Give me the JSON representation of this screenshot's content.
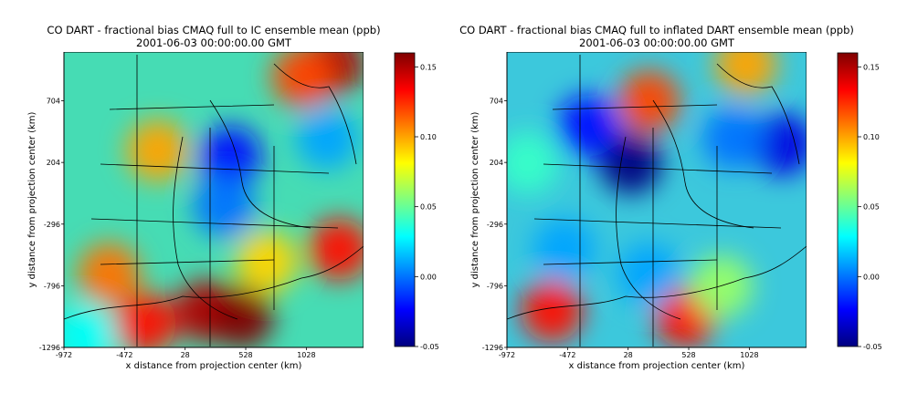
{
  "chart_data": [
    {
      "type": "heatmap",
      "title": "CO DART - fractional bias CMAQ full to IC ensemble mean (ppb)",
      "subtitle": "2001-06-03 00:00:00.00 GMT",
      "xlabel": "x distance from projection center (km)",
      "ylabel": "y distance from projection center (km)",
      "x_ticks": [
        -972,
        -472,
        28,
        528,
        1028
      ],
      "y_ticks": [
        704,
        204,
        -296,
        -796,
        -1296
      ],
      "xlim": [
        -972,
        1500
      ],
      "ylim": [
        -1296,
        1100
      ],
      "colorbar": {
        "ticks": [
          0.15,
          0.1,
          0.05,
          0.0,
          -0.05
        ],
        "range": [
          -0.05,
          0.16
        ]
      },
      "hotspots": [
        {
          "x": 200,
          "y": -1000,
          "value": 0.15
        },
        {
          "x": 500,
          "y": -1050,
          "value": 0.16
        },
        {
          "x": 1250,
          "y": 1000,
          "value": 0.15
        },
        {
          "x": 1300,
          "y": -500,
          "value": 0.13
        },
        {
          "x": -300,
          "y": -1100,
          "value": 0.13
        },
        {
          "x": -600,
          "y": -700,
          "value": 0.11
        },
        {
          "x": 1000,
          "y": 900,
          "value": 0.12
        },
        {
          "x": -200,
          "y": 300,
          "value": 0.1
        },
        {
          "x": 400,
          "y": 250,
          "value": -0.02
        },
        {
          "x": 350,
          "y": -150,
          "value": 0.0
        },
        {
          "x": 1200,
          "y": 400,
          "value": 0.01
        },
        {
          "x": -800,
          "y": -1200,
          "value": 0.03
        },
        {
          "x": 700,
          "y": -600,
          "value": 0.09
        }
      ]
    },
    {
      "type": "heatmap",
      "title": "CO DART - fractional bias CMAQ full to inflated DART ensemble mean (ppb)",
      "subtitle": "2001-06-03 00:00:00.00 GMT",
      "xlabel": "x distance from projection center (km)",
      "ylabel": "y distance from projection center (km)",
      "x_ticks": [
        -972,
        -472,
        28,
        528,
        1028
      ],
      "y_ticks": [
        704,
        204,
        -296,
        -796,
        -1296
      ],
      "xlim": [
        -972,
        1500
      ],
      "ylim": [
        -1296,
        1100
      ],
      "colorbar": {
        "ticks": [
          0.15,
          0.1,
          0.05,
          0.0,
          -0.05
        ],
        "range": [
          -0.05,
          0.16
        ]
      },
      "hotspots": [
        {
          "x": 50,
          "y": 200,
          "value": -0.05
        },
        {
          "x": 200,
          "y": 700,
          "value": 0.12
        },
        {
          "x": -300,
          "y": 500,
          "value": -0.02
        },
        {
          "x": -600,
          "y": -1000,
          "value": 0.13
        },
        {
          "x": 500,
          "y": -1050,
          "value": 0.13
        },
        {
          "x": 1300,
          "y": 350,
          "value": -0.03
        },
        {
          "x": 900,
          "y": 400,
          "value": 0.0
        },
        {
          "x": 1000,
          "y": 1000,
          "value": 0.1
        },
        {
          "x": 200,
          "y": -700,
          "value": 0.01
        },
        {
          "x": -500,
          "y": -500,
          "value": 0.01
        },
        {
          "x": 800,
          "y": -800,
          "value": 0.06
        },
        {
          "x": -800,
          "y": 200,
          "value": 0.04
        }
      ]
    }
  ]
}
